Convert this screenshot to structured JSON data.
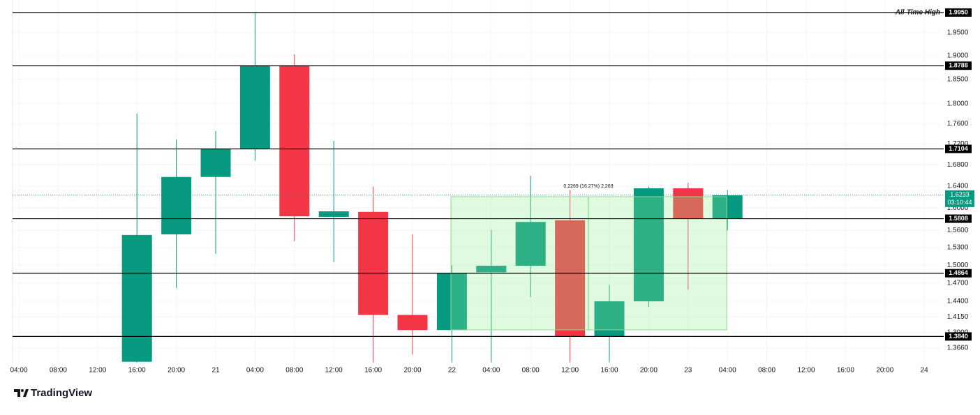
{
  "chart_data": {
    "type": "candlestick",
    "log_scale": true,
    "grid": true,
    "up_color": "#089981",
    "down_color": "#f23645",
    "categories": [
      "04:00",
      "08:00",
      "12:00",
      "16:00",
      "20:00",
      "21",
      "04:00",
      "08:00",
      "12:00",
      "16:00",
      "20:00",
      "22",
      "04:00",
      "08:00",
      "12:00",
      "16:00",
      "20:00",
      "23",
      "04:00",
      "08:00",
      "12:00",
      "16:00",
      "20:00",
      "24"
    ],
    "open": [
      null,
      null,
      null,
      1.345,
      1.553,
      1.657,
      1.71,
      1.879,
      1.584,
      1.593,
      1.418,
      1.394,
      1.488,
      1.499,
      1.578,
      1.384,
      1.44,
      1.636,
      1.581,
      null,
      null,
      null,
      null,
      null
    ],
    "high": [
      null,
      null,
      null,
      1.78,
      1.729,
      1.745,
      1.995,
      1.903,
      1.726,
      1.639,
      1.553,
      1.5,
      1.561,
      1.659,
      1.633,
      1.467,
      1.639,
      1.646,
      1.633,
      null,
      null,
      null,
      null,
      null
    ],
    "low": [
      null,
      null,
      null,
      1.344,
      1.462,
      1.519,
      1.688,
      1.541,
      1.505,
      1.344,
      1.356,
      1.344,
      1.344,
      1.447,
      1.344,
      1.344,
      1.431,
      1.459,
      1.56,
      null,
      null,
      null,
      null,
      null
    ],
    "close": [
      null,
      null,
      null,
      1.552,
      1.657,
      1.71,
      1.879,
      1.585,
      1.594,
      1.418,
      1.394,
      1.486,
      1.499,
      1.575,
      1.384,
      1.44,
      1.636,
      1.581,
      1.623,
      null,
      null,
      null,
      null,
      null
    ],
    "ylim": [
      1.3436,
      2.0235
    ],
    "yticks": [
      {
        "value": 1.366,
        "label": "1.3660"
      },
      {
        "value": 1.39,
        "label": "1.3900"
      },
      {
        "value": 1.415,
        "label": "1.4150"
      },
      {
        "value": 1.44,
        "label": "1.4400"
      },
      {
        "value": 1.47,
        "label": "1.4700"
      },
      {
        "value": 1.5,
        "label": "1.5000"
      },
      {
        "value": 1.53,
        "label": "1.5300"
      },
      {
        "value": 1.56,
        "label": "1.5600"
      },
      {
        "value": 1.6,
        "label": "1.6000"
      },
      {
        "value": 1.64,
        "label": "1.6400"
      },
      {
        "value": 1.68,
        "label": "1.6800"
      },
      {
        "value": 1.72,
        "label": "1.7200"
      },
      {
        "value": 1.76,
        "label": "1.7600"
      },
      {
        "value": 1.8,
        "label": "1.8000"
      },
      {
        "value": 1.85,
        "label": "1.8500"
      },
      {
        "value": 1.9,
        "label": "1.9000"
      },
      {
        "value": 1.95,
        "label": "1.9500"
      }
    ],
    "levels": [
      {
        "value": 1.995,
        "label": "1.9950"
      },
      {
        "value": 1.8788,
        "label": "1.8788"
      },
      {
        "value": 1.7104,
        "label": "1.7104"
      },
      {
        "value": 1.5808,
        "label": "1.5808"
      },
      {
        "value": 1.4864,
        "label": "1.4864"
      },
      {
        "value": 1.384,
        "label": "1.3840"
      }
    ],
    "ath_label": "All-Time High",
    "current_price": {
      "value": 1.6233,
      "label": "1.6233",
      "countdown": "03:10:44"
    },
    "measure_label": "0.2269 (16.27%) 2,269",
    "brand": "TradingView"
  }
}
